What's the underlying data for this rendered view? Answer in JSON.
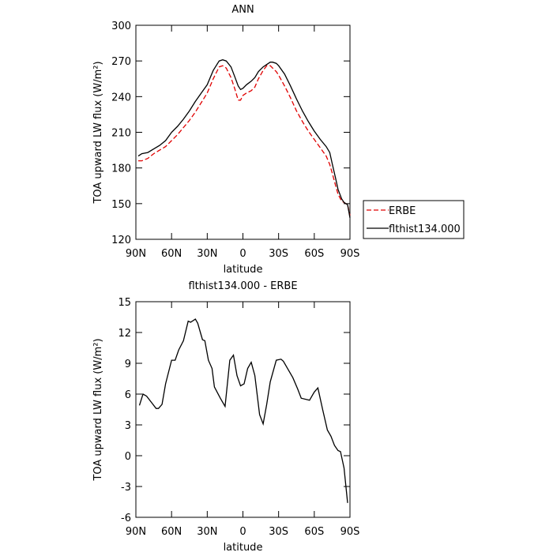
{
  "chart_data": [
    {
      "type": "line",
      "title": "ANN",
      "x_label": "latitude",
      "y_label": "TOA upward LW flux (W/m²)",
      "x": [
        88,
        85,
        80,
        75,
        70,
        65,
        60,
        55,
        50,
        45,
        40,
        35,
        30,
        25,
        20,
        17,
        14,
        10,
        7,
        4,
        2,
        0,
        -3,
        -7,
        -10,
        -13,
        -17,
        -20,
        -23,
        -25,
        -28,
        -30,
        -35,
        -40,
        -45,
        -50,
        -55,
        -60,
        -65,
        -70,
        -73,
        -75,
        -78,
        -80,
        -83,
        -85,
        -88,
        -90
      ],
      "series": [
        {
          "name": "ERBE",
          "color": "#e00000",
          "linestyle": "dashed",
          "values": [
            186,
            186,
            188,
            192,
            195,
            198,
            203,
            208,
            214,
            220,
            227,
            235,
            243,
            255,
            265,
            266,
            264,
            256,
            247,
            237,
            237,
            241,
            243,
            245,
            248,
            255,
            262,
            266,
            266,
            264,
            261,
            258,
            249,
            239,
            228,
            219,
            211,
            204,
            197,
            190,
            183,
            176,
            165,
            158,
            152,
            151,
            149,
            140
          ]
        },
        {
          "name": "flthist134.000",
          "color": "#000000",
          "linestyle": "solid",
          "values": [
            190,
            192,
            193,
            196,
            199,
            203,
            210,
            215,
            221,
            228,
            236,
            243,
            250,
            262,
            270,
            271,
            270,
            265,
            257,
            249,
            246,
            247,
            250,
            253,
            256,
            261,
            265,
            267,
            269,
            269,
            268,
            266,
            259,
            249,
            238,
            228,
            219,
            211,
            204,
            198,
            193,
            184,
            171,
            162,
            154,
            151,
            149,
            138
          ]
        }
      ],
      "xlim": [
        90,
        -90
      ],
      "xticks": [
        {
          "value": 90,
          "label": "90N"
        },
        {
          "value": 60,
          "label": "60N"
        },
        {
          "value": 30,
          "label": "30N"
        },
        0,
        {
          "value": -30,
          "label": "30S"
        },
        {
          "value": -60,
          "label": "60S"
        },
        {
          "value": -90,
          "label": "90S"
        }
      ],
      "ylim": [
        120,
        300
      ],
      "yticks": [
        120,
        150,
        180,
        210,
        240,
        270,
        300
      ],
      "legend": "right"
    },
    {
      "type": "line",
      "title": "flthist134.000 - ERBE",
      "x_label": "latitude",
      "y_label": "TOA upward LW flux (W/m²)",
      "x": [
        87,
        84,
        81,
        77,
        73,
        71,
        68,
        65,
        60,
        57,
        54,
        50,
        46,
        44,
        40,
        38,
        34,
        32,
        29,
        26,
        24,
        19,
        15,
        11,
        8,
        5,
        2,
        -1,
        -4,
        -7,
        -10,
        -14,
        -17,
        -20,
        -23,
        -28,
        -32,
        -34,
        -38,
        -42,
        -46,
        -49,
        -56,
        -60,
        -63,
        -67,
        -71,
        -74,
        -77,
        -80,
        -82,
        -85,
        -88
      ],
      "values": [
        4.9,
        6.0,
        5.8,
        5.2,
        4.6,
        4.6,
        5.0,
        7.0,
        9.3,
        9.3,
        10.3,
        11.2,
        13.1,
        13.0,
        13.3,
        12.9,
        11.3,
        11.2,
        9.3,
        8.5,
        6.7,
        5.6,
        4.8,
        9.3,
        9.8,
        7.8,
        6.8,
        7.0,
        8.5,
        9.1,
        7.8,
        4.0,
        3.1,
        5.0,
        7.2,
        9.3,
        9.4,
        9.2,
        8.4,
        7.6,
        6.5,
        5.6,
        5.4,
        6.2,
        6.6,
        4.5,
        2.5,
        1.9,
        1.0,
        0.5,
        0.4,
        -1.2,
        -4.6
      ],
      "color": "#000000",
      "xlim": [
        90,
        -90
      ],
      "xticks": [
        {
          "value": 90,
          "label": "90N"
        },
        {
          "value": 60,
          "label": "60N"
        },
        {
          "value": 30,
          "label": "30N"
        },
        0,
        {
          "value": -30,
          "label": "30S"
        },
        {
          "value": -60,
          "label": "60S"
        },
        {
          "value": -90,
          "label": "90S"
        }
      ],
      "ylim": [
        -6,
        15
      ],
      "yticks": [
        -6,
        -3,
        0,
        3,
        6,
        9,
        12,
        15
      ]
    }
  ]
}
